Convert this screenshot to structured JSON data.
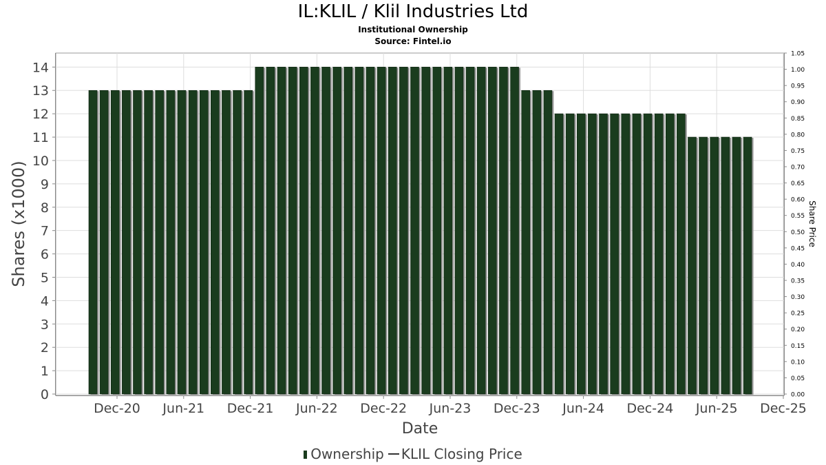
{
  "title": "IL:KLIL / Klil Industries Ltd",
  "subtitle": "Institutional Ownership",
  "source": "Source: Fintel.io",
  "legend": {
    "ownership": "Ownership",
    "price": "KLIL Closing Price"
  },
  "colors": {
    "bar": "#1a3c1e",
    "bar_shadow": "#9a9a9a",
    "grid": "#dddddd",
    "axis": "#888888"
  },
  "chart_data": {
    "type": "bar",
    "title": "IL:KLIL / Klil Industries Ltd",
    "subtitle": "Institutional Ownership",
    "xlabel": "Date",
    "ylabel": "Shares (x1000)",
    "y2label": "Share Price",
    "ylim": [
      0,
      14.6
    ],
    "y2lim": [
      0,
      1.05
    ],
    "yticks": [
      0,
      1,
      2,
      3,
      4,
      5,
      6,
      7,
      8,
      9,
      10,
      11,
      12,
      13,
      14
    ],
    "y2ticks": [
      "0.00",
      "0.05",
      "0.10",
      "0.15",
      "0.20",
      "0.25",
      "0.30",
      "0.35",
      "0.40",
      "0.45",
      "0.50",
      "0.55",
      "0.60",
      "0.65",
      "0.70",
      "0.75",
      "0.80",
      "0.85",
      "0.90",
      "0.95",
      "1.00",
      "1.05"
    ],
    "xticks": [
      "Dec-20",
      "Jun-21",
      "Dec-21",
      "Jun-22",
      "Dec-22",
      "Jun-23",
      "Dec-23",
      "Jun-24",
      "Dec-24",
      "Jun-25",
      "Dec-25"
    ],
    "grid": true,
    "legend_position": "bottom",
    "series": [
      {
        "name": "Ownership",
        "values": [
          13,
          13,
          13,
          13,
          13,
          13,
          13,
          13,
          13,
          13,
          13,
          13,
          13,
          13,
          13,
          14,
          14,
          14,
          14,
          14,
          14,
          14,
          14,
          14,
          14,
          14,
          14,
          14,
          14,
          14,
          14,
          14,
          14,
          14,
          14,
          14,
          14,
          14,
          14,
          13,
          13,
          13,
          12,
          12,
          12,
          12,
          12,
          12,
          12,
          12,
          12,
          12,
          12,
          12,
          11,
          11,
          11,
          11,
          11,
          11
        ]
      }
    ]
  }
}
